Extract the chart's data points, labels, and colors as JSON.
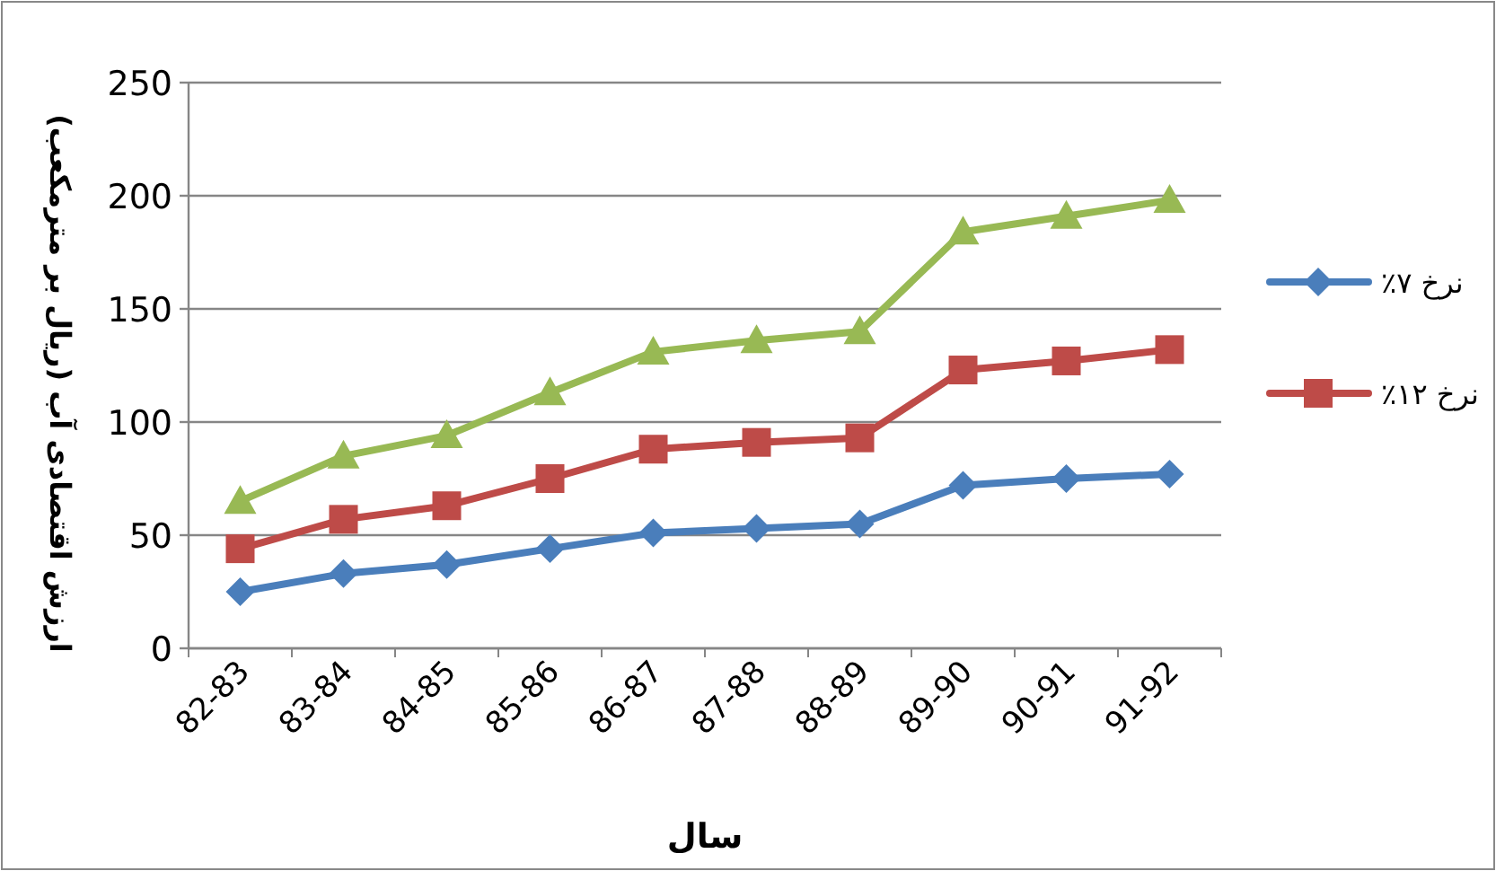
{
  "chart_data": {
    "type": "line",
    "xlabel": "سال",
    "ylabel": "ارزش اقتصادی آب (ریال بر مترمکعب)",
    "categories": [
      "82-83",
      "83-84",
      "84-85",
      "85-86",
      "86-87",
      "87-88",
      "88-89",
      "89-90",
      "90-91",
      "91-92"
    ],
    "series": [
      {
        "name": "نرخ ۷٪",
        "color": "#4a7ebb",
        "marker": "diamond",
        "values": [
          25,
          33,
          37,
          44,
          51,
          53,
          55,
          72,
          75,
          77
        ]
      },
      {
        "name": "نرخ ۱۲٪",
        "color": "#be4b48",
        "marker": "square",
        "values": [
          44,
          57,
          63,
          75,
          88,
          91,
          93,
          123,
          127,
          132
        ]
      },
      {
        "color": "#98b954",
        "marker": "triangle",
        "values": [
          65,
          85,
          94,
          113,
          131,
          136,
          140,
          184,
          191,
          198
        ]
      }
    ],
    "ylim": [
      0,
      250
    ],
    "yticks": [
      0,
      50,
      100,
      150,
      200,
      250
    ],
    "grid": "y",
    "legend": "right"
  }
}
